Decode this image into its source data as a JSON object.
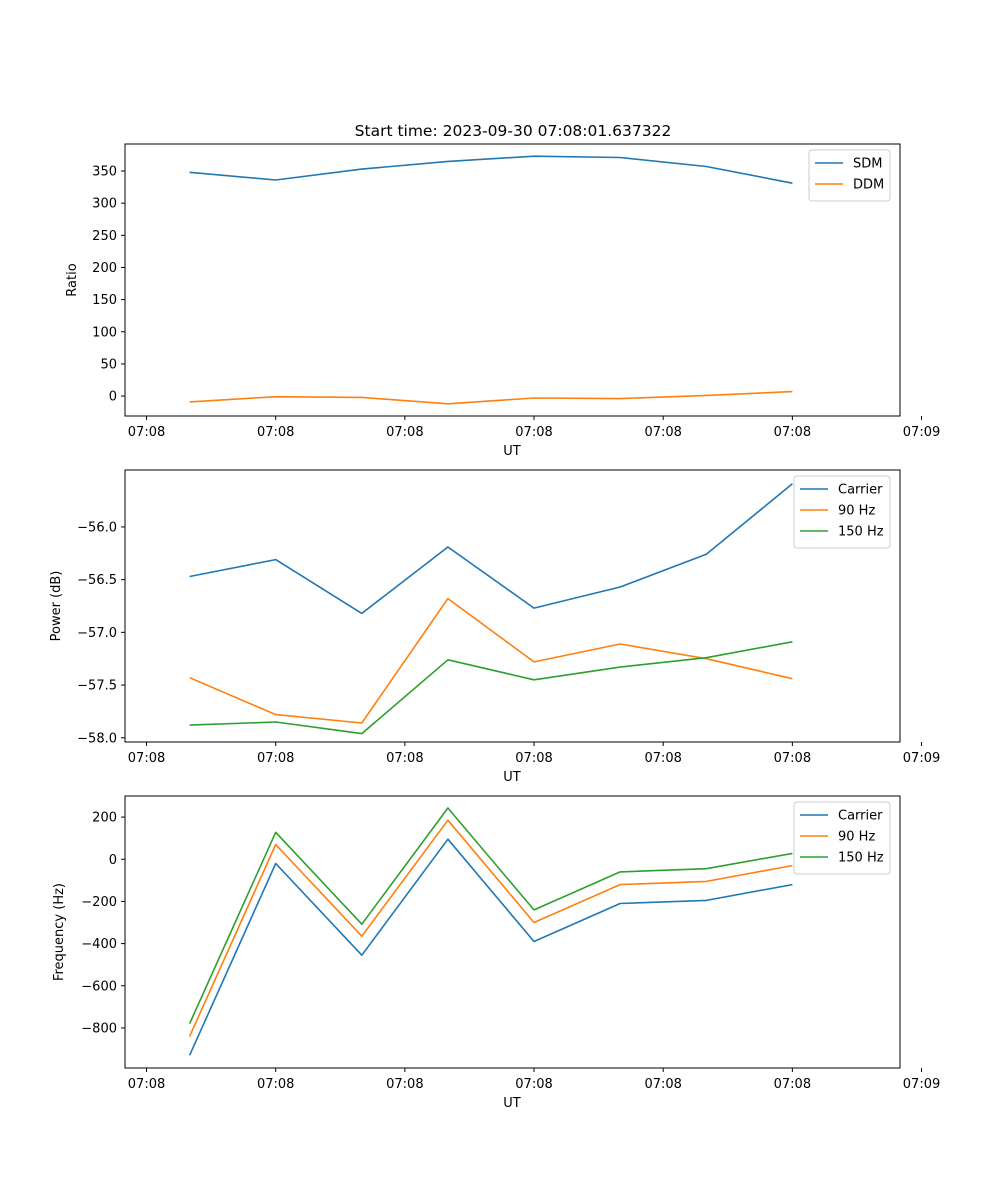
{
  "figure_title": "Start time: 2023-09-30 07:08:01.637322",
  "colors": {
    "blue": "#1f77b4",
    "orange": "#ff7f0e",
    "green": "#2ca02c"
  },
  "chart_data": [
    {
      "type": "line",
      "title": "Start time: 2023-09-30 07:08:01.637322",
      "xlabel": "UT",
      "ylabel": "Ratio",
      "x": [
        1,
        2,
        3,
        4,
        5,
        6,
        7,
        8
      ],
      "xlim": [
        0.25,
        9.25
      ],
      "xticks": [
        0.5,
        2,
        3.5,
        5,
        6.5,
        8,
        9.5
      ],
      "xticklabels": [
        "07:08",
        "07:08",
        "07:08",
        "07:08",
        "07:08",
        "07:08",
        "07:09"
      ],
      "ylim": [
        -31,
        392
      ],
      "yticks": [
        0,
        50,
        100,
        150,
        200,
        250,
        300,
        350
      ],
      "yticklabels": [
        "0",
        "50",
        "100",
        "150",
        "200",
        "250",
        "300",
        "350"
      ],
      "legend_position": "top-right",
      "series": [
        {
          "name": "SDM",
          "color": "#1f77b4",
          "values": [
            348,
            336,
            353,
            365,
            373,
            371,
            357,
            331
          ]
        },
        {
          "name": "DDM",
          "color": "#ff7f0e",
          "values": [
            -9,
            -1,
            -2,
            -12,
            -3,
            -4,
            1,
            7
          ]
        }
      ]
    },
    {
      "type": "line",
      "xlabel": "UT",
      "ylabel": "Power (dB)",
      "x": [
        1,
        2,
        3,
        4,
        5,
        6,
        7,
        8
      ],
      "xlim": [
        0.25,
        9.25
      ],
      "xticks": [
        0.5,
        2,
        3.5,
        5,
        6.5,
        8,
        9.5
      ],
      "xticklabels": [
        "07:08",
        "07:08",
        "07:08",
        "07:08",
        "07:08",
        "07:08",
        "07:09"
      ],
      "ylim": [
        -58.04,
        -55.46
      ],
      "yticks": [
        -58.0,
        -57.5,
        -57.0,
        -56.5,
        -56.0
      ],
      "yticklabels": [
        "−58.0",
        "−57.5",
        "−57.0",
        "−56.5",
        "−56.0"
      ],
      "legend_position": "top-right",
      "series": [
        {
          "name": "Carrier",
          "color": "#1f77b4",
          "values": [
            -56.47,
            -56.31,
            -56.82,
            -56.19,
            -56.77,
            -56.57,
            -56.26,
            -55.59
          ]
        },
        {
          "name": "90 Hz",
          "color": "#ff7f0e",
          "values": [
            -57.43,
            -57.78,
            -57.86,
            -56.68,
            -57.28,
            -57.11,
            -57.25,
            -57.44
          ]
        },
        {
          "name": "150 Hz",
          "color": "#2ca02c",
          "values": [
            -57.88,
            -57.85,
            -57.96,
            -57.26,
            -57.45,
            -57.33,
            -57.24,
            -57.09
          ]
        }
      ]
    },
    {
      "type": "line",
      "xlabel": "UT",
      "ylabel": "Frequency (Hz)",
      "x": [
        1,
        2,
        3,
        4,
        5,
        6,
        7,
        8
      ],
      "xlim": [
        0.25,
        9.25
      ],
      "xticks": [
        0.5,
        2,
        3.5,
        5,
        6.5,
        8,
        9.5
      ],
      "xticklabels": [
        "07:08",
        "07:08",
        "07:08",
        "07:08",
        "07:08",
        "07:08",
        "07:09"
      ],
      "ylim": [
        -990,
        300
      ],
      "yticks": [
        -800,
        -600,
        -400,
        -200,
        0,
        200
      ],
      "yticklabels": [
        "−800",
        "−600",
        "−400",
        "−200",
        "0",
        "200"
      ],
      "legend_position": "top-right",
      "series": [
        {
          "name": "Carrier",
          "color": "#1f77b4",
          "values": [
            -930,
            -20,
            -455,
            95,
            -390,
            -210,
            -195,
            -120
          ]
        },
        {
          "name": "90 Hz",
          "color": "#ff7f0e",
          "values": [
            -840,
            70,
            -365,
            185,
            -300,
            -120,
            -105,
            -30
          ]
        },
        {
          "name": "150 Hz",
          "color": "#2ca02c",
          "values": [
            -780,
            128,
            -308,
            243,
            -240,
            -60,
            -45,
            28
          ]
        }
      ]
    }
  ]
}
